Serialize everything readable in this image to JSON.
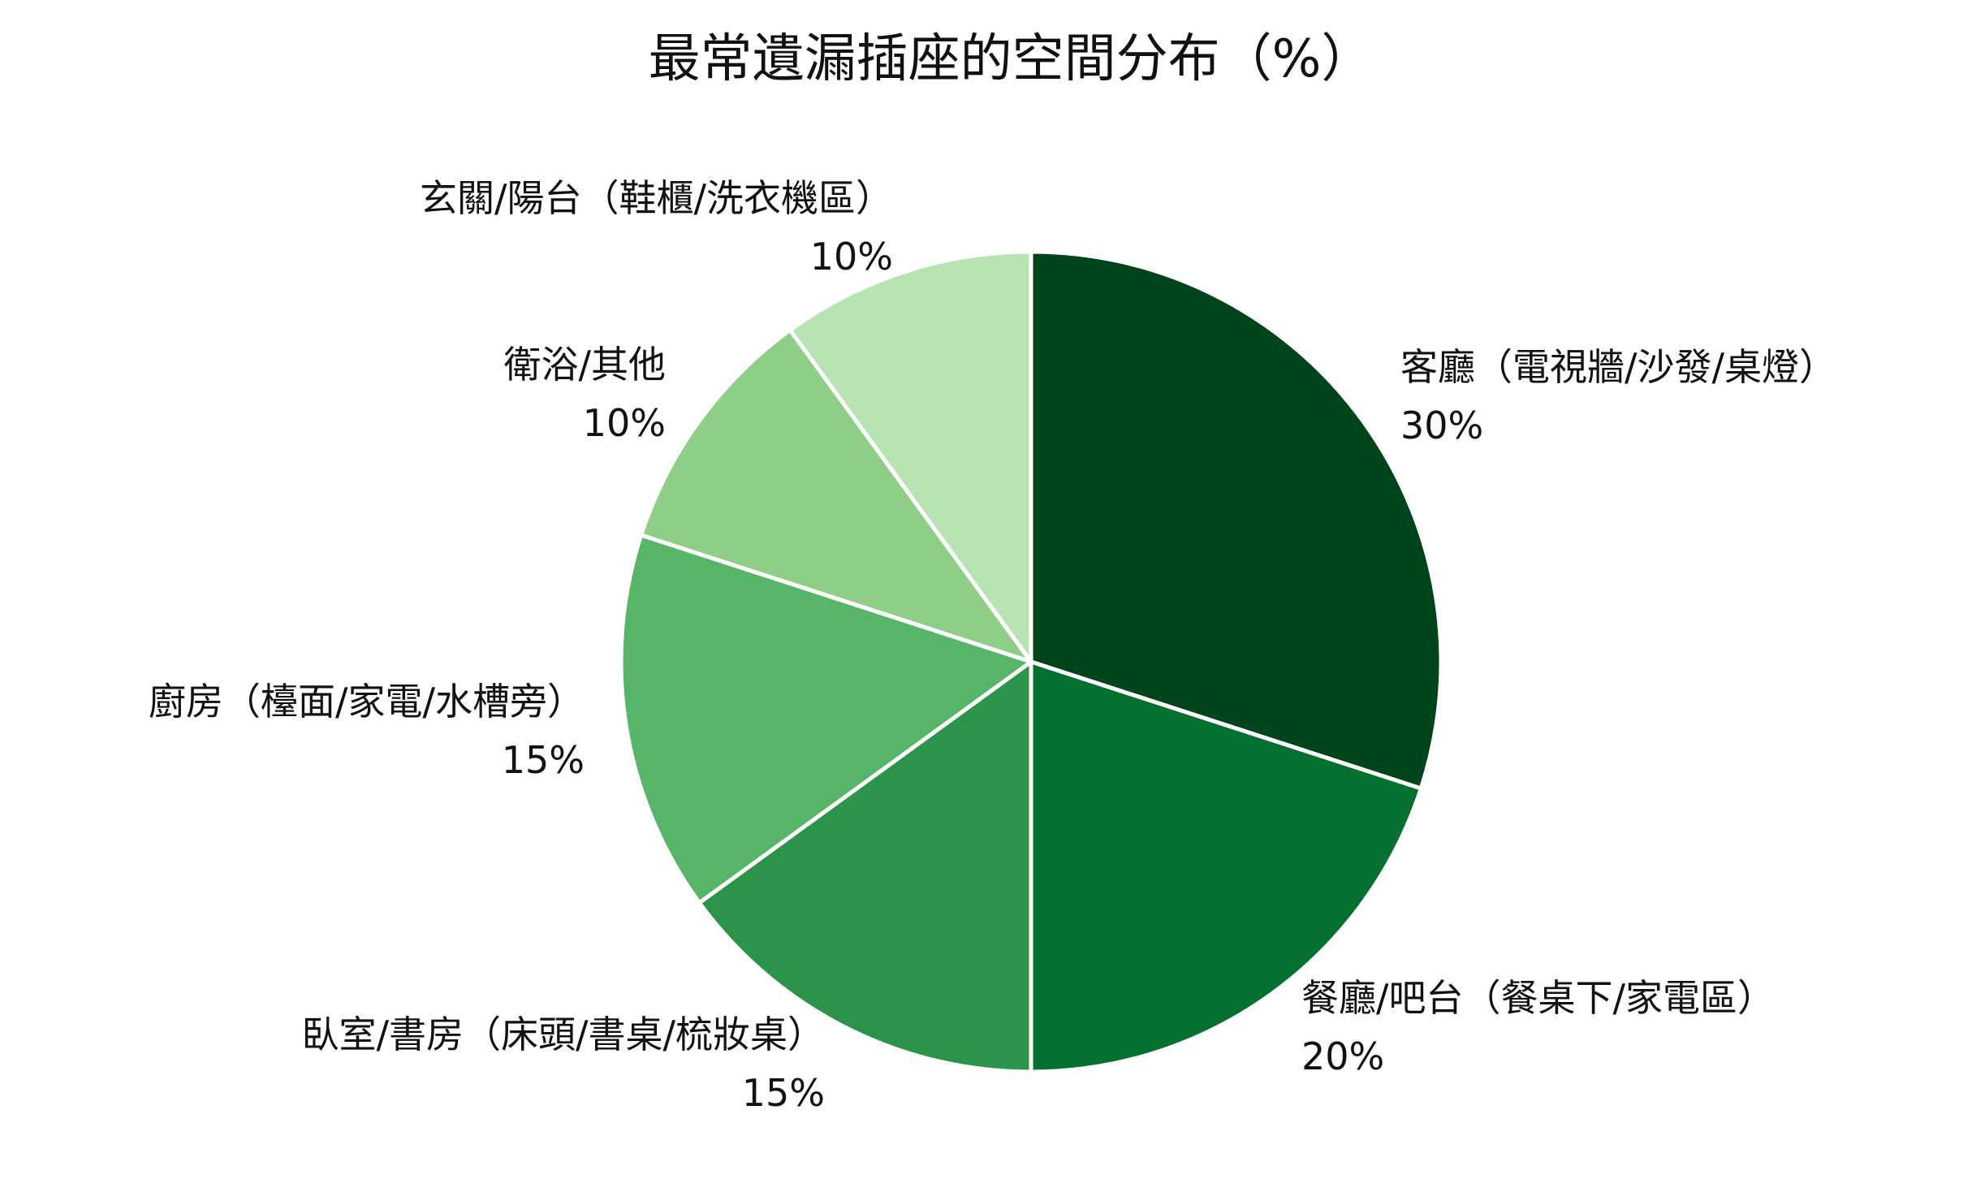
{
  "chart_data": {
    "type": "pie",
    "title": "最常遺漏插座的空間分布（%）",
    "slices": [
      {
        "label": "客廳（電視牆/沙發/桌燈）",
        "value": 30,
        "value_label": "30%",
        "color": "#00441b"
      },
      {
        "label": "餐廳/吧台（餐桌下/家電區）",
        "value": 20,
        "value_label": "20%",
        "color": "#04702f"
      },
      {
        "label": "臥室/書房（床頭/書桌/梳妝桌）",
        "value": 15,
        "value_label": "15%",
        "color": "#2c934a"
      },
      {
        "label": "廚房（檯面/家電/水槽旁）",
        "value": 15,
        "value_label": "15%",
        "color": "#56b567"
      },
      {
        "label": "衛浴/其他",
        "value": 10,
        "value_label": "10%",
        "color": "#8fce87"
      },
      {
        "label": "玄關/陽台（鞋櫃/洗衣機區）",
        "value": 10,
        "value_label": "10%",
        "color": "#b8e3b2"
      }
    ]
  }
}
